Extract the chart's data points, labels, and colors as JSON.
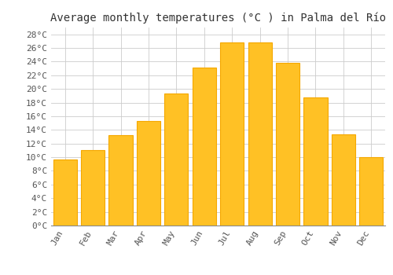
{
  "title": "Average monthly temperatures (°C ) in Palma del Río",
  "months": [
    "Jan",
    "Feb",
    "Mar",
    "Apr",
    "May",
    "Jun",
    "Jul",
    "Aug",
    "Sep",
    "Oct",
    "Nov",
    "Dec"
  ],
  "values": [
    9.7,
    11.1,
    13.2,
    15.3,
    19.3,
    23.1,
    26.8,
    26.8,
    23.8,
    18.8,
    13.3,
    10.0
  ],
  "bar_color": "#FFC125",
  "bar_edgecolor": "#F5A800",
  "ylim": [
    0,
    29
  ],
  "yticks": [
    0,
    2,
    4,
    6,
    8,
    10,
    12,
    14,
    16,
    18,
    20,
    22,
    24,
    26,
    28
  ],
  "ytick_labels": [
    "0°C",
    "2°C",
    "4°C",
    "6°C",
    "8°C",
    "10°C",
    "12°C",
    "14°C",
    "16°C",
    "18°C",
    "20°C",
    "22°C",
    "24°C",
    "26°C",
    "28°C"
  ],
  "background_color": "#ffffff",
  "grid_color": "#cccccc",
  "title_fontsize": 10,
  "tick_fontsize": 8,
  "font_family": "monospace",
  "bar_width": 0.85
}
